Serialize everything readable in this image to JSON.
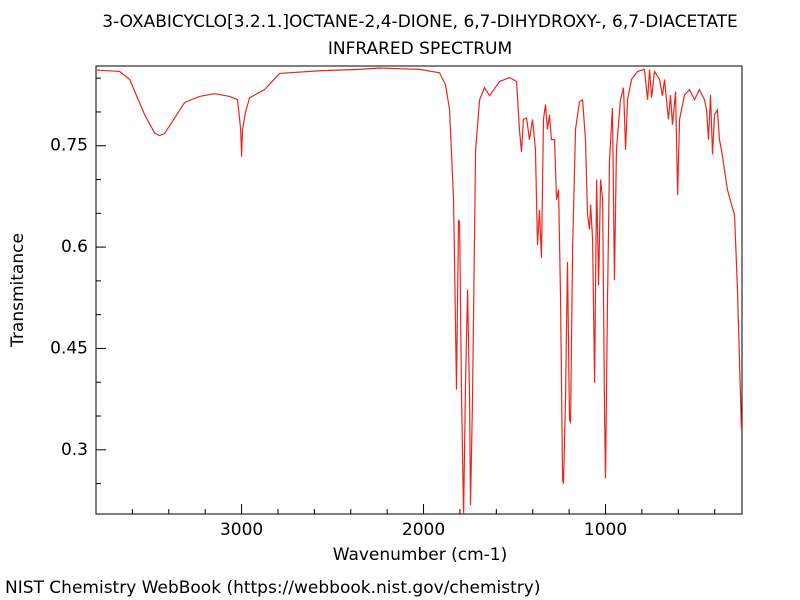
{
  "chart_data": {
    "type": "line",
    "title": "3-OXABICYCLO[3.2.1.]OCTANE-2,4-DIONE, 6,7-DIHYDROXY-, 6,7-DIACETATE",
    "subtitle": "INFRARED SPECTRUM",
    "x_label": "Wavenumber (cm-1)",
    "y_label": "Transmitance",
    "footer": "NIST Chemistry WebBook (https://webbook.nist.gov/chemistry)",
    "color": "#e8261f",
    "xlim": [
      3800,
      250
    ],
    "ylim": [
      0.205,
      0.868
    ],
    "xticks": [
      3000,
      2000,
      1000
    ],
    "yticks": [
      0.75,
      0.6,
      0.45,
      0.3
    ],
    "xticks_minor": [
      3600,
      3400,
      3200,
      2800,
      2600,
      2400,
      2200,
      1800,
      1600,
      1400,
      1200,
      800,
      600,
      400
    ],
    "yticks_minor": [
      0.85,
      0.8,
      0.7,
      0.65,
      0.55,
      0.5,
      0.4,
      0.35,
      0.25
    ],
    "x": [
      3802,
      3670,
      3615,
      3533,
      3478,
      3451,
      3423,
      3368,
      3313,
      3231,
      3148,
      3066,
      3022,
      3005,
      3000,
      2995,
      2978,
      2956,
      2874,
      2791,
      2571,
      2352,
      2242,
      2022,
      1912,
      1879,
      1857,
      1835,
      1819,
      1808,
      1802,
      1791,
      1780,
      1769,
      1758,
      1747,
      1742,
      1731,
      1714,
      1692,
      1665,
      1637,
      1582,
      1527,
      1489,
      1473,
      1462,
      1451,
      1434,
      1418,
      1401,
      1385,
      1374,
      1363,
      1352,
      1341,
      1330,
      1319,
      1308,
      1297,
      1280,
      1269,
      1258,
      1247,
      1236,
      1231,
      1220,
      1209,
      1198,
      1192,
      1181,
      1165,
      1143,
      1126,
      1110,
      1099,
      1088,
      1082,
      1071,
      1060,
      1049,
      1038,
      1027,
      1016,
      1005,
      1000,
      989,
      978,
      962,
      951,
      940,
      918,
      901,
      890,
      879,
      857,
      824,
      786,
      769,
      758,
      747,
      731,
      703,
      687,
      676,
      654,
      643,
      632,
      615,
      604,
      593,
      566,
      538,
      511,
      484,
      456,
      445,
      434,
      423,
      412,
      401,
      385,
      374,
      363,
      346,
      330,
      308,
      291,
      275,
      253
    ],
    "values": [
      0.862,
      0.86,
      0.848,
      0.796,
      0.769,
      0.765,
      0.768,
      0.791,
      0.814,
      0.823,
      0.827,
      0.823,
      0.818,
      0.774,
      0.734,
      0.774,
      0.8,
      0.821,
      0.833,
      0.857,
      0.861,
      0.863,
      0.865,
      0.863,
      0.858,
      0.84,
      0.803,
      0.67,
      0.389,
      0.64,
      0.637,
      0.374,
      0.205,
      0.404,
      0.537,
      0.374,
      0.218,
      0.374,
      0.744,
      0.818,
      0.836,
      0.824,
      0.845,
      0.851,
      0.845,
      0.774,
      0.741,
      0.789,
      0.791,
      0.759,
      0.789,
      0.744,
      0.603,
      0.655,
      0.584,
      0.789,
      0.811,
      0.774,
      0.796,
      0.759,
      0.759,
      0.67,
      0.685,
      0.522,
      0.255,
      0.25,
      0.374,
      0.578,
      0.344,
      0.341,
      0.596,
      0.774,
      0.815,
      0.818,
      0.759,
      0.648,
      0.626,
      0.663,
      0.611,
      0.399,
      0.7,
      0.544,
      0.7,
      0.67,
      0.344,
      0.258,
      0.522,
      0.729,
      0.806,
      0.551,
      0.744,
      0.818,
      0.836,
      0.744,
      0.818,
      0.848,
      0.86,
      0.863,
      0.818,
      0.863,
      0.821,
      0.86,
      0.848,
      0.824,
      0.848,
      0.789,
      0.825,
      0.781,
      0.83,
      0.677,
      0.789,
      0.825,
      0.833,
      0.818,
      0.833,
      0.818,
      0.803,
      0.759,
      0.825,
      0.737,
      0.796,
      0.803,
      0.759,
      0.744,
      0.714,
      0.685,
      0.663,
      0.648,
      0.537,
      0.33
    ]
  }
}
